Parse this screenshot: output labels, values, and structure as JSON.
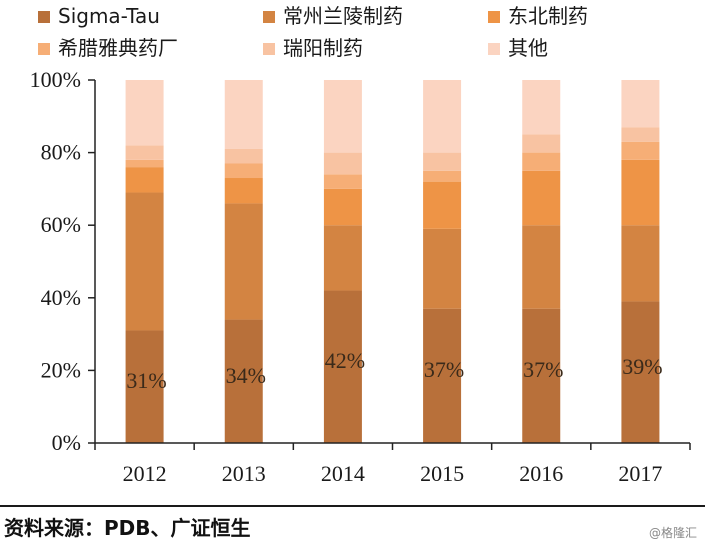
{
  "chart_data": {
    "type": "bar",
    "stacked": true,
    "categories": [
      "2012",
      "2013",
      "2014",
      "2015",
      "2016",
      "2017"
    ],
    "series": [
      {
        "name": "Sigma-Tau",
        "color": "#B8703A",
        "values": [
          31,
          34,
          42,
          37,
          37,
          39
        ]
      },
      {
        "name": "常州兰陵制药",
        "color": "#D38442",
        "values": [
          38,
          32,
          18,
          22,
          23,
          21
        ]
      },
      {
        "name": "东北制药",
        "color": "#EE9446",
        "values": [
          7,
          7,
          10,
          13,
          15,
          18
        ]
      },
      {
        "name": "希腊雅典药厂",
        "color": "#F6AE76",
        "values": [
          2,
          4,
          4,
          3,
          5,
          5
        ]
      },
      {
        "name": "瑞阳制药",
        "color": "#F8C3A2",
        "values": [
          4,
          4,
          6,
          5,
          5,
          4
        ]
      },
      {
        "name": "其他",
        "color": "#FBD4C1",
        "values": [
          18,
          19,
          20,
          20,
          15,
          13
        ]
      }
    ],
    "data_labels": [
      "31%",
      "34%",
      "42%",
      "37%",
      "37%",
      "39%"
    ],
    "yticks": [
      "0%",
      "20%",
      "40%",
      "60%",
      "80%",
      "100%"
    ],
    "ylim": [
      0,
      100
    ],
    "legend_position": "top",
    "grid": false
  },
  "source": "资料来源：PDB、广证恒生",
  "watermark": "@格隆汇"
}
